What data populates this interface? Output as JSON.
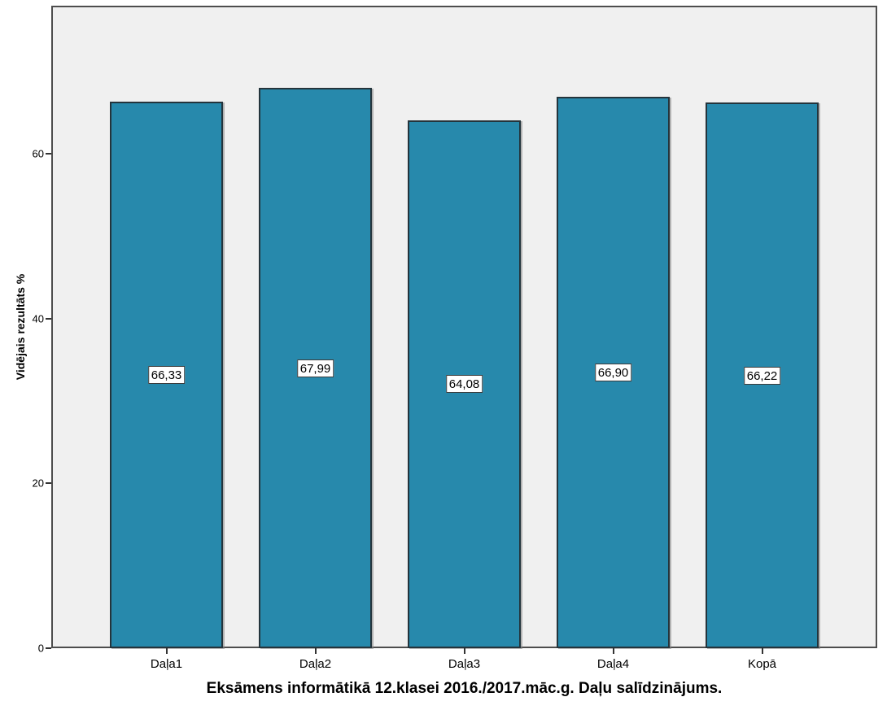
{
  "chart_data": {
    "type": "bar",
    "title": "Eksāmens informātikā 12.klasei 2016./2017.māc.g. Daļu salīdzinājums.",
    "ylabel": "Vidējais rezultāts %",
    "xlabel": "",
    "categories": [
      "Daļa1",
      "Daļa2",
      "Daļa3",
      "Daļa4",
      "Kopā"
    ],
    "values": [
      66.33,
      67.99,
      64.08,
      66.9,
      66.22
    ],
    "value_labels": [
      "66,33",
      "67,99",
      "64,08",
      "66,90",
      "66,22"
    ],
    "yticks": [
      0,
      20,
      40,
      60
    ],
    "ytick_labels": [
      "0",
      "20",
      "40",
      "60"
    ],
    "ylim": [
      0,
      78
    ],
    "grid": false,
    "legend": "none",
    "colors": {
      "bar_fill": "#2789AC",
      "bar_border": "#24343C",
      "plot_background": "#F0F0F0",
      "frame_border": "#4d4d4d",
      "label_box_background": "#FFFFFF",
      "label_box_border": "#3a3a3a",
      "text": "#000000"
    }
  }
}
